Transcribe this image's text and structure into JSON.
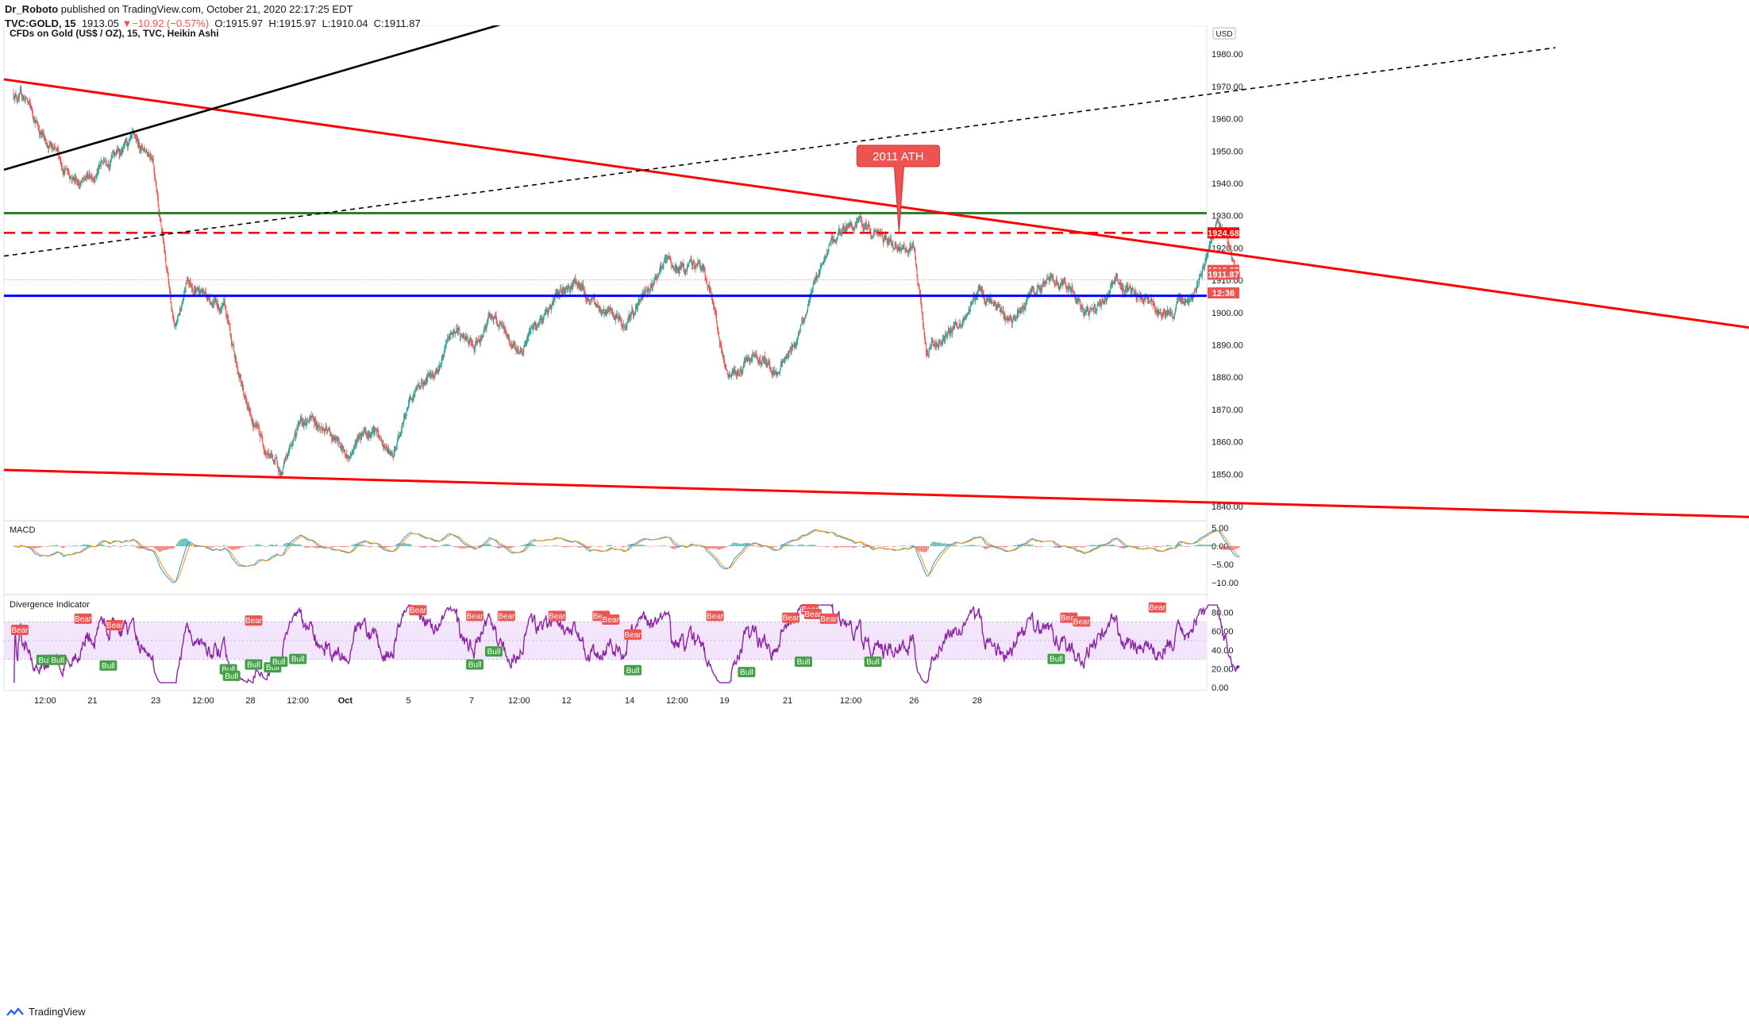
{
  "header": {
    "publisher": "Dr_Roboto",
    "published_text": "published on TradingView.com, October 21, 2020 22:17:25 EDT",
    "symbol": "TVC:GOLD, 15",
    "last": "1913.05",
    "arrow": "▼",
    "change": "−10.92 (−0.57%)",
    "open": "O:1915.97",
    "high": "H:1915.97",
    "low": "L:1910.04",
    "close": "C:1911.87"
  },
  "footer": {
    "brand": "TradingView"
  },
  "colors": {
    "up": "#26a69a",
    "down": "#ef5350",
    "resistance_green": "#2e7d32",
    "support_blue": "#0000ff",
    "trend_red": "#ff0000",
    "rsi_purple": "#8e24aa",
    "rsi_band": "#f3e5fc",
    "macd_line": "#2196f3",
    "signal_line": "#ff9800"
  },
  "chart_data": [
    {
      "type": "candlestick",
      "title": "CFDs on Gold (US$ / OZ), 15, TVC, Heikin Ashi",
      "currency": "USD",
      "ylim": [
        1836,
        1988
      ],
      "y_ticks": [
        "1980.00",
        "1970.00",
        "1960.00",
        "1950.00",
        "1940.00",
        "1930.00",
        "1920.00",
        "1910.00",
        "1900.00",
        "1890.00",
        "1880.00",
        "1870.00",
        "1860.00",
        "1850.00",
        "1840.00"
      ],
      "x_ticks": [
        "12:00",
        "21",
        "23",
        "12:00",
        "28",
        "12:00",
        "Oct",
        "5",
        "7",
        "12:00",
        "12",
        "14",
        "12:00",
        "19",
        "21",
        "12:00",
        "26",
        "28"
      ],
      "x_range_trading_days": [
        0,
        25
      ],
      "price_keypoints": [
        [
          0.0,
          1968
        ],
        [
          0.2,
          1966
        ],
        [
          0.45,
          1955
        ],
        [
          0.8,
          1945
        ],
        [
          1.1,
          1940
        ],
        [
          1.5,
          1948
        ],
        [
          1.9,
          1952
        ],
        [
          2.2,
          1950
        ],
        [
          2.35,
          1925
        ],
        [
          2.55,
          1893
        ],
        [
          2.75,
          1910
        ],
        [
          3.1,
          1905
        ],
        [
          3.35,
          1900
        ],
        [
          3.7,
          1870
        ],
        [
          4.0,
          1858
        ],
        [
          4.25,
          1850
        ],
        [
          4.55,
          1868
        ],
        [
          4.8,
          1866
        ],
        [
          5.1,
          1860
        ],
        [
          5.3,
          1855
        ],
        [
          5.55,
          1865
        ],
        [
          5.75,
          1862
        ],
        [
          6.0,
          1854
        ],
        [
          6.3,
          1875
        ],
        [
          6.7,
          1883
        ],
        [
          7.0,
          1895
        ],
        [
          7.3,
          1888
        ],
        [
          7.55,
          1900
        ],
        [
          7.8,
          1892
        ],
        [
          8.0,
          1888
        ],
        [
          8.3,
          1897
        ],
        [
          8.6,
          1905
        ],
        [
          8.9,
          1910
        ],
        [
          9.1,
          1904
        ],
        [
          9.4,
          1900
        ],
        [
          9.7,
          1895
        ],
        [
          10.0,
          1907
        ],
        [
          10.3,
          1915
        ],
        [
          10.6,
          1913
        ],
        [
          10.9,
          1915
        ],
        [
          11.1,
          1900
        ],
        [
          11.3,
          1878
        ],
        [
          11.55,
          1883
        ],
        [
          11.8,
          1886
        ],
        [
          12.1,
          1882
        ],
        [
          12.35,
          1890
        ],
        [
          12.6,
          1905
        ],
        [
          12.95,
          1922
        ],
        [
          13.3,
          1928
        ],
        [
          13.55,
          1925
        ],
        [
          13.85,
          1922
        ],
        [
          14.05,
          1918
        ],
        [
          14.25,
          1920
        ],
        [
          14.45,
          1888
        ],
        [
          14.7,
          1892
        ],
        [
          15.0,
          1897
        ],
        [
          15.3,
          1908
        ],
        [
          15.55,
          1900
        ],
        [
          15.8,
          1897
        ],
        [
          16.1,
          1906
        ],
        [
          16.4,
          1910
        ],
        [
          16.7,
          1907
        ],
        [
          16.95,
          1900
        ],
        [
          17.2,
          1902
        ],
        [
          17.45,
          1910
        ],
        [
          17.7,
          1905
        ],
        [
          18.0,
          1903
        ],
        [
          18.3,
          1900
        ],
        [
          18.6,
          1905
        ],
        [
          18.85,
          1915
        ],
        [
          19.05,
          1928
        ],
        [
          19.25,
          1921
        ],
        [
          19.4,
          1912
        ]
      ],
      "annotation": {
        "text": "2011 ATH",
        "value": 1924.68
      },
      "horizontal_lines": [
        {
          "price": 1930.8,
          "style": "solid",
          "color": "#2e7d32"
        },
        {
          "price": 1924.68,
          "style": "dashed",
          "color": "#ff0000",
          "label": "1924.68"
        },
        {
          "price": 1905.2,
          "style": "solid",
          "color": "#0000ff"
        },
        {
          "price": 1910.2,
          "style": "dotted",
          "color": "#ef5350"
        }
      ],
      "trend_lines": [
        {
          "p1": [
            0,
            1972.2
          ],
          "p2": [
            29.5,
            1889.7
          ],
          "color": "#ff0000",
          "style": "solid"
        },
        {
          "p1": [
            0,
            1851.3
          ],
          "p2": [
            28.9,
            1836.0
          ],
          "color": "#ff0000",
          "style": "solid"
        },
        {
          "p1": [
            0,
            1944.2
          ],
          "p2": [
            9.6,
            2000.0
          ],
          "color": "#000000",
          "style": "solid"
        },
        {
          "p1": [
            0,
            1917.5
          ],
          "p2": [
            24.4,
            1982.0
          ],
          "color": "#000000",
          "style": "dashed"
        }
      ],
      "price_labels": [
        {
          "text": "1924.68",
          "price": 1924.68,
          "color": "#ff0000"
        },
        {
          "text": "1913.05",
          "price": 1913.05,
          "color": "#ef5350"
        },
        {
          "text": "1911.87",
          "price": 1911.87,
          "color": "#ef5350"
        },
        {
          "text": "12:36",
          "price": 1906.1,
          "color": "#ef5350"
        }
      ]
    },
    {
      "type": "line",
      "title": "MACD",
      "ylim": [
        -12,
        6
      ],
      "y_ticks": [
        "5.00",
        "0.00",
        "−5.00",
        "−10.00"
      ]
    },
    {
      "type": "line",
      "title": "Divergence Indicator",
      "ylim": [
        -2,
        90
      ],
      "y_ticks": [
        "80.00",
        "60.00",
        "40.00",
        "20.00",
        "0.00"
      ],
      "band": [
        30,
        70
      ],
      "midline": 50,
      "labels": [
        {
          "text": "Bear",
          "t": 0.1,
          "v": 61
        },
        {
          "text": "Bear",
          "t": 1.1,
          "v": 73
        },
        {
          "text": "Bear",
          "t": 1.6,
          "v": 66
        },
        {
          "text": "Bear",
          "t": 3.8,
          "v": 71
        },
        {
          "text": "Bear",
          "t": 6.4,
          "v": 82
        },
        {
          "text": "Bear",
          "t": 7.3,
          "v": 76
        },
        {
          "text": "Bear",
          "t": 7.8,
          "v": 76
        },
        {
          "text": "Bear",
          "t": 8.6,
          "v": 76
        },
        {
          "text": "Bear",
          "t": 9.3,
          "v": 76
        },
        {
          "text": "Bear",
          "t": 9.45,
          "v": 72
        },
        {
          "text": "Bear",
          "t": 9.8,
          "v": 56
        },
        {
          "text": "Bear",
          "t": 11.1,
          "v": 76
        },
        {
          "text": "Bear",
          "t": 12.3,
          "v": 74
        },
        {
          "text": "Bear",
          "t": 12.6,
          "v": 83
        },
        {
          "text": "Bear",
          "t": 12.65,
          "v": 78
        },
        {
          "text": "Bear",
          "t": 12.9,
          "v": 73
        },
        {
          "text": "Bear",
          "t": 16.7,
          "v": 74
        },
        {
          "text": "Bear",
          "t": 16.9,
          "v": 70
        },
        {
          "text": "Bear",
          "t": 18.1,
          "v": 85
        },
        {
          "text": "Bull",
          "t": 0.5,
          "v": 29
        },
        {
          "text": "Bull",
          "t": 0.7,
          "v": 29
        },
        {
          "text": "Bull",
          "t": 1.5,
          "v": 23
        },
        {
          "text": "Bull",
          "t": 3.4,
          "v": 19
        },
        {
          "text": "Bull",
          "t": 3.45,
          "v": 12
        },
        {
          "text": "Bull",
          "t": 3.8,
          "v": 24
        },
        {
          "text": "Bull",
          "t": 4.1,
          "v": 21
        },
        {
          "text": "Bull",
          "t": 4.2,
          "v": 27
        },
        {
          "text": "Bull",
          "t": 4.5,
          "v": 30
        },
        {
          "text": "Bull",
          "t": 7.3,
          "v": 24
        },
        {
          "text": "Bull",
          "t": 7.6,
          "v": 38
        },
        {
          "text": "Bull",
          "t": 9.8,
          "v": 18
        },
        {
          "text": "Bull",
          "t": 11.6,
          "v": 16
        },
        {
          "text": "Bull",
          "t": 12.5,
          "v": 27
        },
        {
          "text": "Bull",
          "t": 13.6,
          "v": 27
        },
        {
          "text": "Bull",
          "t": 16.5,
          "v": 30
        }
      ]
    }
  ]
}
